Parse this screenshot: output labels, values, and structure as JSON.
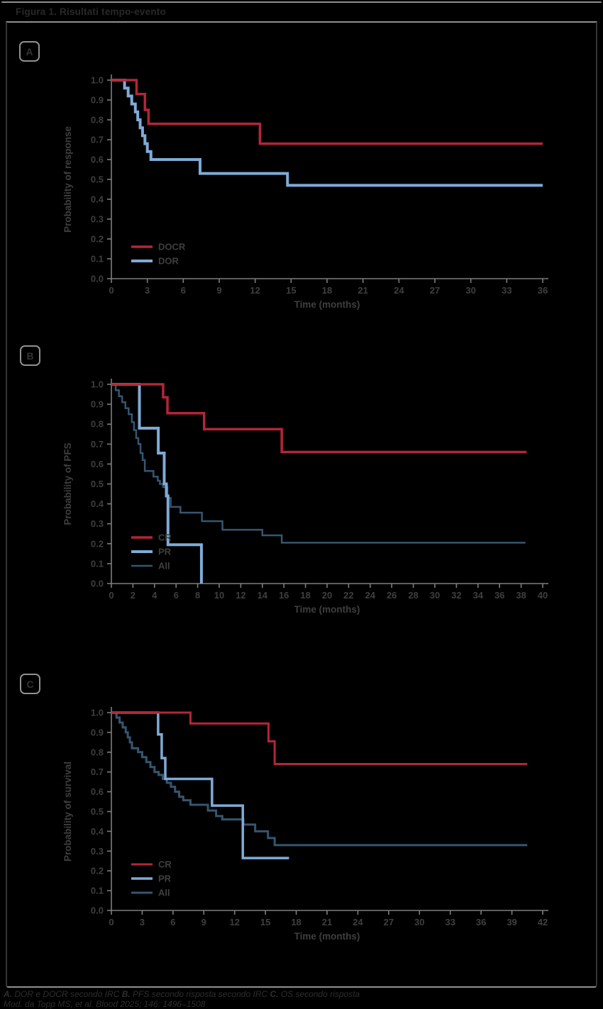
{
  "header": {
    "title": "Figura 1. Risultati tempo-evento"
  },
  "colors": {
    "cr_red": "#b32638",
    "pr_blue": "#7fabd6",
    "all_slate": "#35566f",
    "axis": "#7d7d7d",
    "tick_text": "#3f3f3f"
  },
  "chart_data": [
    {
      "type": "line",
      "subtype": "kaplan-meier-step",
      "panel_label": "A",
      "xlabel": "Time (months)",
      "ylabel": "Probability of response",
      "xlim": [
        0,
        36
      ],
      "xtick_step": 3,
      "ylim": [
        0.0,
        1.0
      ],
      "ytick_step": 0.1,
      "grid": false,
      "legend_position": "lower-left",
      "series": [
        {
          "name": "DOCR",
          "color": "#b32638",
          "width": 3.5,
          "end": 36,
          "steps": [
            [
              0,
              1.0
            ],
            [
              2.1,
              0.93
            ],
            [
              2.8,
              0.85
            ],
            [
              3.1,
              0.78
            ],
            [
              12.4,
              0.68
            ]
          ]
        },
        {
          "name": "DOR",
          "color": "#7fabd6",
          "width": 4,
          "end": 36,
          "steps": [
            [
              0,
              1.0
            ],
            [
              1.1,
              0.96
            ],
            [
              1.4,
              0.92
            ],
            [
              1.7,
              0.88
            ],
            [
              2.0,
              0.84
            ],
            [
              2.2,
              0.8
            ],
            [
              2.4,
              0.76
            ],
            [
              2.6,
              0.72
            ],
            [
              2.8,
              0.68
            ],
            [
              3.0,
              0.64
            ],
            [
              3.3,
              0.6
            ],
            [
              7.4,
              0.53
            ],
            [
              14.7,
              0.47
            ]
          ]
        }
      ]
    },
    {
      "type": "line",
      "subtype": "kaplan-meier-step",
      "panel_label": "B",
      "xlabel": "Time (months)",
      "ylabel": "Probability of PFS",
      "xlim": [
        0,
        40
      ],
      "xtick_step": 2,
      "ylim": [
        0.0,
        1.0
      ],
      "ytick_step": 0.1,
      "grid": false,
      "legend_position": "lower-left",
      "series": [
        {
          "name": "CR",
          "color": "#b32638",
          "width": 3.5,
          "end": 38.5,
          "steps": [
            [
              0,
              1.0
            ],
            [
              4.8,
              0.935
            ],
            [
              5.2,
              0.855
            ],
            [
              8.6,
              0.775
            ],
            [
              15.8,
              0.66
            ]
          ]
        },
        {
          "name": "PR",
          "color": "#7fabd6",
          "width": 4,
          "end": 8.35,
          "steps": [
            [
              0,
              1.0
            ],
            [
              2.6,
              0.78
            ],
            [
              4.35,
              0.655
            ],
            [
              4.9,
              0.5
            ],
            [
              5.1,
              0.44
            ],
            [
              5.25,
              0.195
            ],
            [
              8.35,
              0.0
            ]
          ]
        },
        {
          "name": "All",
          "color": "#35566f",
          "width": 2.5,
          "end": 38.4,
          "steps": [
            [
              0,
              1.0
            ],
            [
              0.4,
              0.97
            ],
            [
              0.7,
              0.94
            ],
            [
              1.0,
              0.91
            ],
            [
              1.3,
              0.88
            ],
            [
              1.6,
              0.85
            ],
            [
              1.9,
              0.81
            ],
            [
              2.1,
              0.77
            ],
            [
              2.3,
              0.73
            ],
            [
              2.5,
              0.7
            ],
            [
              2.7,
              0.655
            ],
            [
              2.9,
              0.62
            ],
            [
              3.1,
              0.565
            ],
            [
              3.9,
              0.537
            ],
            [
              4.3,
              0.516
            ],
            [
              4.5,
              0.5
            ],
            [
              4.8,
              0.484
            ],
            [
              5.2,
              0.43
            ],
            [
              5.5,
              0.385
            ],
            [
              6.4,
              0.356
            ],
            [
              8.4,
              0.313
            ],
            [
              10.3,
              0.27
            ],
            [
              14.0,
              0.242
            ],
            [
              15.8,
              0.205
            ]
          ]
        }
      ]
    },
    {
      "type": "line",
      "subtype": "kaplan-meier-step",
      "panel_label": "C",
      "xlabel": "Time (months)",
      "ylabel": "Probability of survival",
      "xlim": [
        0,
        42
      ],
      "xtick_step": 3,
      "ylim": [
        0.0,
        1.0
      ],
      "ytick_step": 0.1,
      "grid": false,
      "legend_position": "lower-left",
      "series": [
        {
          "name": "CR",
          "color": "#b32638",
          "width": 3,
          "end": 40.5,
          "steps": [
            [
              0,
              1.0
            ],
            [
              7.7,
              0.945
            ],
            [
              15.3,
              0.855
            ],
            [
              15.9,
              0.74
            ]
          ]
        },
        {
          "name": "PR",
          "color": "#7fabd6",
          "width": 3.5,
          "end": 17.3,
          "steps": [
            [
              0,
              1.0
            ],
            [
              4.55,
              0.89
            ],
            [
              4.9,
              0.77
            ],
            [
              5.25,
              0.665
            ],
            [
              9.8,
              0.53
            ],
            [
              12.8,
              0.265
            ]
          ]
        },
        {
          "name": "All",
          "color": "#35566f",
          "width": 3,
          "end": 40.5,
          "steps": [
            [
              0,
              1.0
            ],
            [
              0.5,
              0.975
            ],
            [
              0.8,
              0.95
            ],
            [
              1.1,
              0.925
            ],
            [
              1.4,
              0.9
            ],
            [
              1.6,
              0.875
            ],
            [
              1.8,
              0.85
            ],
            [
              2.0,
              0.82
            ],
            [
              2.6,
              0.8
            ],
            [
              3.0,
              0.775
            ],
            [
              3.4,
              0.75
            ],
            [
              3.8,
              0.725
            ],
            [
              4.2,
              0.7
            ],
            [
              4.6,
              0.685
            ],
            [
              5.0,
              0.665
            ],
            [
              5.4,
              0.645
            ],
            [
              5.8,
              0.625
            ],
            [
              6.2,
              0.6
            ],
            [
              6.6,
              0.575
            ],
            [
              7.0,
              0.557
            ],
            [
              7.7,
              0.534
            ],
            [
              9.4,
              0.505
            ],
            [
              10.2,
              0.477
            ],
            [
              10.8,
              0.46
            ],
            [
              12.85,
              0.434
            ],
            [
              14.0,
              0.4
            ],
            [
              15.25,
              0.366
            ],
            [
              15.9,
              0.33
            ]
          ]
        }
      ]
    }
  ],
  "footer": {
    "caption_parts": [
      {
        "text": "A.",
        "bold": true
      },
      {
        "text": " DOR e DOCR secondo IRC ",
        "bold": false
      },
      {
        "text": "B.",
        "bold": true
      },
      {
        "text": " PFS secondo risposta secondo IRC ",
        "bold": false
      },
      {
        "text": "C.",
        "bold": true
      },
      {
        "text": " OS secondo risposta",
        "bold": false
      }
    ],
    "source": "Mod. da Topp MS, et al. Blood 2025; 146: 1496–1508"
  }
}
